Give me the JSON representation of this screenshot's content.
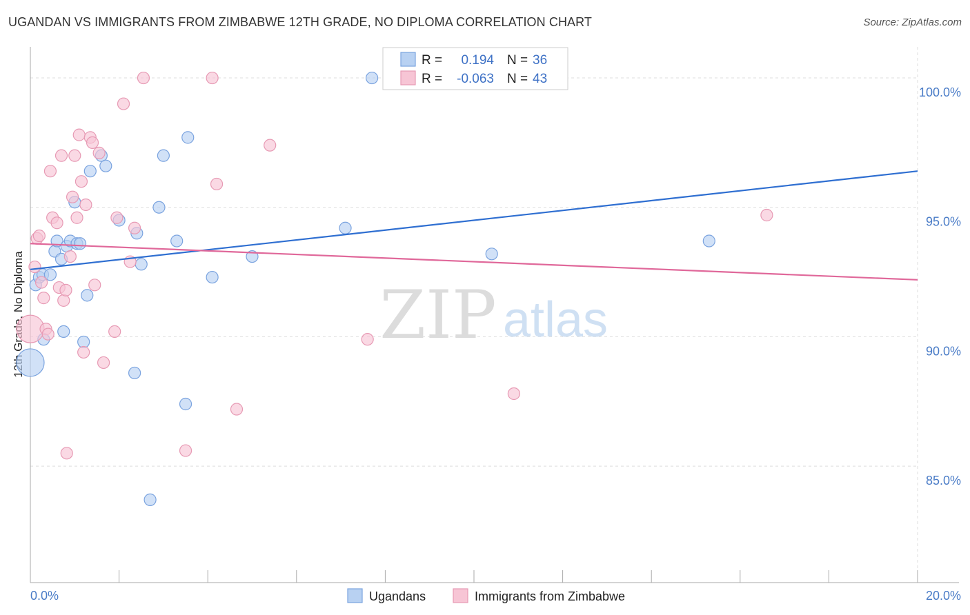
{
  "title": "UGANDAN VS IMMIGRANTS FROM ZIMBABWE 12TH GRADE, NO DIPLOMA CORRELATION CHART",
  "source": "Source: ZipAtlas.com",
  "watermark": {
    "zip": "ZIP",
    "atlas": "atlas"
  },
  "colors": {
    "blue_fill": "#b8d1f2",
    "blue_stroke": "#7aa3df",
    "blue_line": "#2f6fd1",
    "pink_fill": "#f7c5d5",
    "pink_stroke": "#e79ab4",
    "pink_line": "#e0689a",
    "grid": "#dddddd",
    "tick_text": "#4a7cc7"
  },
  "legend": {
    "r_label": "R =",
    "n_label": "N =",
    "series1": {
      "r": "0.194",
      "n": "36"
    },
    "series2": {
      "r": "-0.063",
      "n": "43"
    }
  },
  "chart_data": {
    "type": "scatter",
    "title": "UGANDAN VS IMMIGRANTS FROM ZIMBABWE 12TH GRADE, NO DIPLOMA CORRELATION CHART",
    "xlabel": "",
    "ylabel": "12th Grade, No Diploma",
    "xlim": [
      0,
      20
    ],
    "ylim": [
      80.5,
      101.2
    ],
    "x_tick_labels": [
      "0.0%",
      "20.0%"
    ],
    "y_ticks": [
      85,
      90,
      95,
      100
    ],
    "y_tick_labels": [
      "85.0%",
      "90.0%",
      "95.0%",
      "100.0%"
    ],
    "grid": true,
    "legend_position": "bottom-center",
    "series": [
      {
        "name": "Ugandans",
        "color": "blue",
        "trend": {
          "x": [
            0.0,
            20.0
          ],
          "y": [
            92.6,
            96.4
          ]
        },
        "points": [
          {
            "x": 0.0,
            "y": 89.0,
            "big": true
          },
          {
            "x": 0.12,
            "y": 92.0
          },
          {
            "x": 0.2,
            "y": 92.3
          },
          {
            "x": 0.28,
            "y": 92.4
          },
          {
            "x": 0.3,
            "y": 89.9
          },
          {
            "x": 0.45,
            "y": 92.4
          },
          {
            "x": 0.55,
            "y": 93.3
          },
          {
            "x": 0.6,
            "y": 93.7
          },
          {
            "x": 0.7,
            "y": 93.0
          },
          {
            "x": 0.75,
            "y": 90.2
          },
          {
            "x": 0.82,
            "y": 93.5
          },
          {
            "x": 0.9,
            "y": 93.7
          },
          {
            "x": 1.0,
            "y": 95.2
          },
          {
            "x": 1.05,
            "y": 93.6
          },
          {
            "x": 1.12,
            "y": 93.6
          },
          {
            "x": 1.2,
            "y": 89.8
          },
          {
            "x": 1.28,
            "y": 91.6
          },
          {
            "x": 1.35,
            "y": 96.4
          },
          {
            "x": 1.6,
            "y": 97.0
          },
          {
            "x": 1.7,
            "y": 96.6
          },
          {
            "x": 2.0,
            "y": 94.5
          },
          {
            "x": 2.35,
            "y": 88.6
          },
          {
            "x": 2.4,
            "y": 94.0
          },
          {
            "x": 2.5,
            "y": 92.8
          },
          {
            "x": 2.7,
            "y": 83.7
          },
          {
            "x": 2.9,
            "y": 95.0
          },
          {
            "x": 3.0,
            "y": 97.0
          },
          {
            "x": 3.3,
            "y": 93.7
          },
          {
            "x": 3.5,
            "y": 87.4
          },
          {
            "x": 3.55,
            "y": 97.7
          },
          {
            "x": 4.1,
            "y": 92.3
          },
          {
            "x": 5.0,
            "y": 93.1
          },
          {
            "x": 7.1,
            "y": 94.2
          },
          {
            "x": 7.7,
            "y": 100.0
          },
          {
            "x": 10.4,
            "y": 93.2
          },
          {
            "x": 15.3,
            "y": 93.7
          }
        ]
      },
      {
        "name": "Immigrants from Zimbabwe",
        "color": "pink",
        "trend": {
          "x": [
            0.0,
            20.0
          ],
          "y": [
            93.6,
            92.2
          ]
        },
        "points": [
          {
            "x": 0.0,
            "y": 90.3,
            "big": true
          },
          {
            "x": 0.1,
            "y": 92.7
          },
          {
            "x": 0.15,
            "y": 93.8
          },
          {
            "x": 0.2,
            "y": 93.9
          },
          {
            "x": 0.25,
            "y": 92.1
          },
          {
            "x": 0.3,
            "y": 91.5
          },
          {
            "x": 0.35,
            "y": 90.3
          },
          {
            "x": 0.4,
            "y": 90.1
          },
          {
            "x": 0.45,
            "y": 96.4
          },
          {
            "x": 0.5,
            "y": 94.6
          },
          {
            "x": 0.6,
            "y": 94.4
          },
          {
            "x": 0.65,
            "y": 91.9
          },
          {
            "x": 0.7,
            "y": 97.0
          },
          {
            "x": 0.75,
            "y": 91.4
          },
          {
            "x": 0.8,
            "y": 91.8
          },
          {
            "x": 0.82,
            "y": 85.5
          },
          {
            "x": 0.9,
            "y": 93.1
          },
          {
            "x": 0.95,
            "y": 95.4
          },
          {
            "x": 1.0,
            "y": 97.0
          },
          {
            "x": 1.05,
            "y": 94.6
          },
          {
            "x": 1.1,
            "y": 97.8
          },
          {
            "x": 1.15,
            "y": 96.0
          },
          {
            "x": 1.2,
            "y": 89.4
          },
          {
            "x": 1.25,
            "y": 95.1
          },
          {
            "x": 1.35,
            "y": 97.7
          },
          {
            "x": 1.4,
            "y": 97.5
          },
          {
            "x": 1.45,
            "y": 92.0
          },
          {
            "x": 1.55,
            "y": 97.1
          },
          {
            "x": 1.65,
            "y": 89.0
          },
          {
            "x": 1.9,
            "y": 90.2
          },
          {
            "x": 1.95,
            "y": 94.6
          },
          {
            "x": 2.1,
            "y": 99.0
          },
          {
            "x": 2.25,
            "y": 92.9
          },
          {
            "x": 2.35,
            "y": 94.2
          },
          {
            "x": 2.55,
            "y": 100.0
          },
          {
            "x": 3.5,
            "y": 85.6
          },
          {
            "x": 4.1,
            "y": 100.0
          },
          {
            "x": 4.2,
            "y": 95.9
          },
          {
            "x": 4.65,
            "y": 87.2
          },
          {
            "x": 5.4,
            "y": 97.4
          },
          {
            "x": 7.6,
            "y": 89.9
          },
          {
            "x": 10.9,
            "y": 87.8
          },
          {
            "x": 16.6,
            "y": 94.7
          }
        ]
      }
    ]
  }
}
